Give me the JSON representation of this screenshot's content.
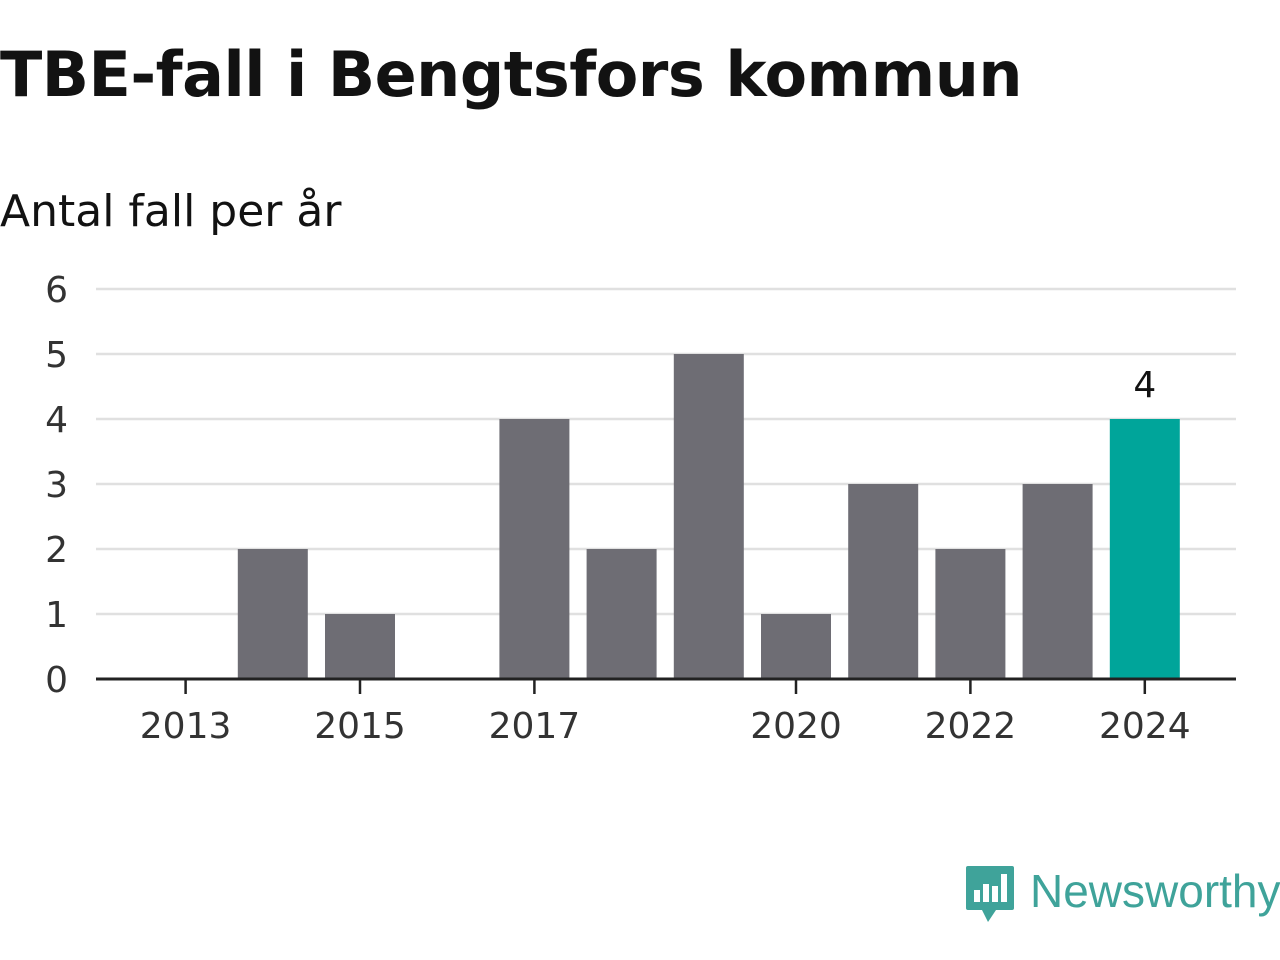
{
  "title": "TBE-fall i Bengtsfors kommun",
  "subtitle": "Antal fall per år",
  "brand": {
    "name": "Newsworthy",
    "icon": "newsworthy-logo-icon",
    "color": "#3fa39a"
  },
  "chart_data": {
    "type": "bar",
    "title": "TBE-fall i Bengtsfors kommun",
    "subtitle": "Antal fall per år",
    "categories": [
      2013,
      2014,
      2015,
      2016,
      2017,
      2018,
      2019,
      2020,
      2021,
      2022,
      2023,
      2024
    ],
    "values": [
      0,
      2,
      1,
      0,
      4,
      2,
      5,
      1,
      3,
      2,
      3,
      4
    ],
    "x_tick_labels": [
      "2013",
      "2015",
      "2017",
      "2020",
      "2022",
      "2024"
    ],
    "y_ticks": [
      0,
      1,
      2,
      3,
      4,
      5,
      6
    ],
    "ylim": [
      0,
      6
    ],
    "xlabel": "",
    "ylabel": "",
    "grid": true,
    "bar_color": "#6e6d74",
    "highlight_color": "#00a59a",
    "highlight_category": 2024,
    "data_labels": [
      {
        "category": 2024,
        "text": "4"
      }
    ]
  }
}
